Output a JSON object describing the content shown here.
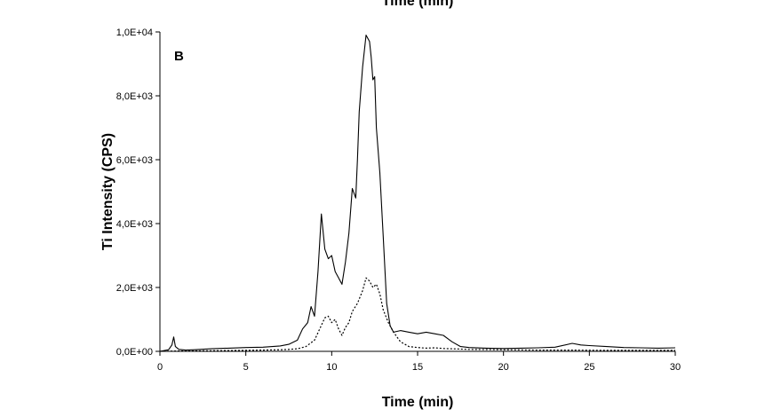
{
  "chart_data": {
    "type": "line",
    "panel_label": "B",
    "top_cropped_label": "Time (min)",
    "xlabel": "Time (min)",
    "ylabel": "Ti Intensity (CPS)",
    "xlim": [
      0,
      30
    ],
    "ylim": [
      0,
      10000
    ],
    "x_ticks": [
      "0",
      "5",
      "10",
      "15",
      "20",
      "25",
      "30"
    ],
    "y_ticks": [
      "0,0E+00",
      "2,0E+03",
      "4,0E+03",
      "6,0E+03",
      "8,0E+03",
      "1,0E+04"
    ],
    "grid": false,
    "legend": "none",
    "series": [
      {
        "style": "solid",
        "x": [
          0,
          0.5,
          0.7,
          0.8,
          0.9,
          1.1,
          1.5,
          2,
          3,
          4,
          5,
          6,
          7,
          7.5,
          8,
          8.3,
          8.6,
          8.8,
          9.0,
          9.2,
          9.4,
          9.6,
          9.8,
          10.0,
          10.2,
          10.4,
          10.6,
          10.8,
          11.0,
          11.2,
          11.4,
          11.5,
          11.6,
          11.8,
          12.0,
          12.2,
          12.3,
          12.4,
          12.5,
          12.6,
          12.8,
          13.0,
          13.2,
          13.4,
          13.6,
          14.0,
          14.5,
          15.0,
          15.5,
          16.0,
          16.5,
          17.0,
          17.5,
          18,
          19,
          20,
          21,
          22,
          23,
          24,
          24.5,
          25,
          26,
          27,
          28,
          29,
          30
        ],
        "y": [
          0,
          50,
          200,
          450,
          150,
          60,
          40,
          50,
          80,
          100,
          120,
          130,
          170,
          220,
          350,
          700,
          900,
          1400,
          1100,
          2500,
          4300,
          3200,
          2900,
          3000,
          2500,
          2300,
          2100,
          2800,
          3700,
          5100,
          4800,
          6000,
          7500,
          8900,
          9900,
          9700,
          9200,
          8500,
          8600,
          7000,
          5600,
          3600,
          1500,
          800,
          600,
          650,
          600,
          550,
          600,
          550,
          500,
          300,
          150,
          120,
          100,
          90,
          100,
          110,
          130,
          250,
          200,
          180,
          150,
          120,
          110,
          100,
          110
        ]
      },
      {
        "style": "dotted",
        "x": [
          0,
          1,
          2,
          3,
          4,
          5,
          6,
          7,
          7.5,
          8,
          8.5,
          9.0,
          9.3,
          9.6,
          9.8,
          10.0,
          10.2,
          10.4,
          10.6,
          10.8,
          11.0,
          11.2,
          11.5,
          11.8,
          12.0,
          12.2,
          12.4,
          12.6,
          12.8,
          13.0,
          13.3,
          13.6,
          14.0,
          14.5,
          15.0,
          15.5,
          16,
          16.5,
          17,
          18,
          20,
          22,
          24,
          26,
          28,
          30
        ],
        "y": [
          0,
          10,
          15,
          20,
          25,
          30,
          40,
          50,
          60,
          80,
          150,
          350,
          700,
          1050,
          1100,
          900,
          1000,
          700,
          500,
          750,
          900,
          1250,
          1500,
          1900,
          2300,
          2200,
          2000,
          2100,
          1800,
          1300,
          900,
          600,
          300,
          150,
          120,
          100,
          110,
          90,
          80,
          60,
          50,
          40,
          40,
          30,
          30,
          30
        ]
      }
    ]
  }
}
